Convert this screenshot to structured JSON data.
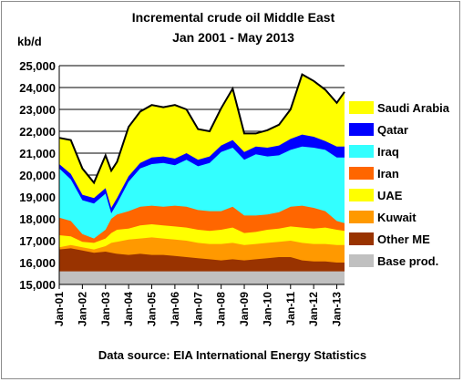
{
  "chart_data": {
    "type": "area",
    "title": "Incremental crude oil Middle East",
    "subtitle": "Jan 2001 - May 2013",
    "ylabel": "kb/d",
    "source": "Data source: EIA International Energy Statistics",
    "ylim": [
      15000,
      25000
    ],
    "yticks": [
      15000,
      16000,
      17000,
      18000,
      19000,
      20000,
      21000,
      22000,
      23000,
      24000,
      25000
    ],
    "ytick_labels": [
      "15,000",
      "16,000",
      "17,000",
      "18,000",
      "19,000",
      "20,000",
      "21,000",
      "22,000",
      "23,000",
      "24,000",
      "25,000"
    ],
    "xticks": [
      "Jan-01",
      "Jan-02",
      "Jan-03",
      "Jan-04",
      "Jan-05",
      "Jan-06",
      "Jan-07",
      "Jan-08",
      "Jan-09",
      "Jan-10",
      "Jan-11",
      "Jan-12",
      "Jan-13"
    ],
    "x": [
      "2001-01",
      "2001-07",
      "2002-01",
      "2002-07",
      "2003-01",
      "2003-04",
      "2003-07",
      "2004-01",
      "2004-07",
      "2005-01",
      "2005-07",
      "2006-01",
      "2006-07",
      "2007-01",
      "2007-07",
      "2008-01",
      "2008-07",
      "2009-01",
      "2009-07",
      "2010-01",
      "2010-07",
      "2011-01",
      "2011-07",
      "2012-01",
      "2012-07",
      "2013-01",
      "2013-05"
    ],
    "stack_order": "bottom-to-top",
    "legend_position": "right",
    "series": [
      {
        "name": "Base prod.",
        "color": "#c0c0c0",
        "values": [
          15600,
          15600,
          15600,
          15600,
          15600,
          15600,
          15600,
          15600,
          15600,
          15600,
          15600,
          15600,
          15600,
          15600,
          15600,
          15600,
          15600,
          15600,
          15600,
          15600,
          15600,
          15600,
          15600,
          15600,
          15600,
          15600,
          15600
        ]
      },
      {
        "name": "Other ME",
        "color": "#993300",
        "values": [
          16600,
          16650,
          16550,
          16450,
          16500,
          16450,
          16400,
          16350,
          16400,
          16350,
          16350,
          16300,
          16250,
          16200,
          16150,
          16100,
          16150,
          16100,
          16150,
          16200,
          16250,
          16250,
          16100,
          16050,
          16050,
          16000,
          16000
        ]
      },
      {
        "name": "Kuwait",
        "color": "#ff9900",
        "values": [
          16700,
          16800,
          16700,
          16600,
          16750,
          16900,
          16950,
          17050,
          17100,
          17150,
          17100,
          17050,
          17000,
          16900,
          16850,
          16850,
          16900,
          16800,
          16850,
          16900,
          16950,
          17000,
          16900,
          16850,
          16850,
          16800,
          16800
        ]
      },
      {
        "name": "UAE",
        "color": "#ffff00",
        "values": [
          17250,
          17200,
          16950,
          16900,
          17100,
          17350,
          17500,
          17550,
          17700,
          17750,
          17700,
          17650,
          17600,
          17500,
          17450,
          17500,
          17600,
          17350,
          17400,
          17500,
          17550,
          17650,
          17600,
          17550,
          17600,
          17500,
          17450
        ]
      },
      {
        "name": "Iran",
        "color": "#ff6600",
        "values": [
          18050,
          17900,
          17300,
          17100,
          17500,
          18000,
          18200,
          18350,
          18550,
          18600,
          18550,
          18600,
          18550,
          18400,
          18350,
          18350,
          18550,
          18150,
          18150,
          18200,
          18300,
          18550,
          18600,
          18500,
          18350,
          17900,
          17800
        ]
      },
      {
        "name": "Iraq",
        "color": "#33ffff",
        "values": [
          20300,
          19800,
          18850,
          18700,
          19150,
          18250,
          18700,
          19700,
          20300,
          20500,
          20550,
          20450,
          20700,
          20400,
          20550,
          21050,
          21250,
          20700,
          20950,
          20850,
          20900,
          21150,
          21300,
          21250,
          21150,
          20800,
          20800
        ]
      },
      {
        "name": "Qatar",
        "color": "#0000ff",
        "values": [
          20500,
          20050,
          19100,
          18950,
          19400,
          18500,
          18950,
          19950,
          20550,
          20800,
          20850,
          20750,
          21000,
          20700,
          20850,
          21350,
          21600,
          21050,
          21300,
          21250,
          21350,
          21650,
          21850,
          21750,
          21550,
          21300,
          21300
        ]
      },
      {
        "name": "Saudi Arabia",
        "color": "#ffff00",
        "values": [
          21700,
          21600,
          20300,
          19650,
          20900,
          20200,
          20600,
          22200,
          22900,
          23200,
          23100,
          23200,
          23000,
          22100,
          22000,
          23050,
          23950,
          21900,
          21900,
          22050,
          22300,
          23000,
          24600,
          24300,
          23900,
          23300,
          23800
        ]
      }
    ]
  }
}
